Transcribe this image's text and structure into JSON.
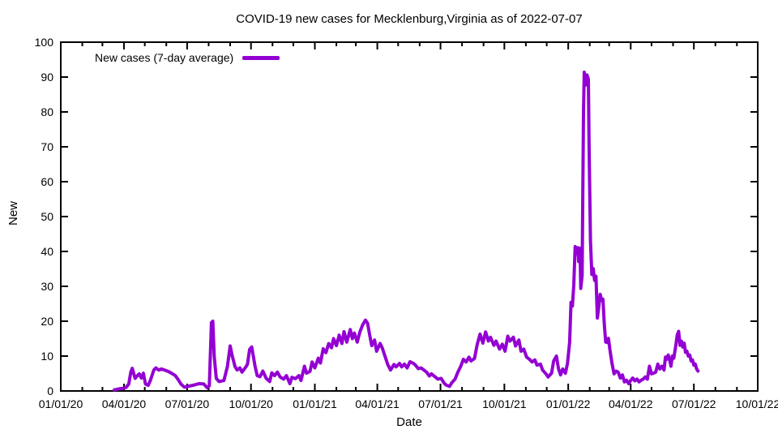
{
  "chart_data": {
    "type": "line",
    "title": "COVID-19 new cases for Mecklenburg,Virginia as of 2022-07-07",
    "xlabel": "Date",
    "ylabel": "New",
    "xlim": [
      "2020-01-01",
      "2022-10-01"
    ],
    "ylim": [
      0,
      100
    ],
    "grid": false,
    "legend_position": "top-left-inside",
    "background_color": "#ffffff",
    "axis_color": "#000000",
    "text_color": "#000000",
    "y_ticks": [
      0,
      10,
      20,
      30,
      40,
      50,
      60,
      70,
      80,
      90,
      100
    ],
    "x_ticks": [
      {
        "label": "01/01/20",
        "date": "2020-01-01"
      },
      {
        "label": "04/01/20",
        "date": "2020-04-01"
      },
      {
        "label": "07/01/20",
        "date": "2020-07-01"
      },
      {
        "label": "10/01/20",
        "date": "2020-10-01"
      },
      {
        "label": "01/01/21",
        "date": "2021-01-01"
      },
      {
        "label": "04/01/21",
        "date": "2021-04-01"
      },
      {
        "label": "07/01/21",
        "date": "2021-07-01"
      },
      {
        "label": "10/01/21",
        "date": "2021-10-01"
      },
      {
        "label": "01/01/22",
        "date": "2022-01-01"
      },
      {
        "label": "04/01/22",
        "date": "2022-04-01"
      },
      {
        "label": "07/01/22",
        "date": "2022-07-01"
      },
      {
        "label": "10/01/22",
        "date": "2022-10-01"
      }
    ],
    "x_minor_tick_unit": "month",
    "series": [
      {
        "name": "New cases (7-day average)",
        "color": "#9400d3",
        "line_width": 4,
        "points": [
          [
            "2020-03-18",
            0.3
          ],
          [
            "2020-03-25",
            0.6
          ],
          [
            "2020-04-01",
            0.8
          ],
          [
            "2020-04-04",
            1.0
          ],
          [
            "2020-04-08",
            2.0
          ],
          [
            "2020-04-11",
            5.5
          ],
          [
            "2020-04-13",
            6.5
          ],
          [
            "2020-04-17",
            3.6
          ],
          [
            "2020-04-20",
            4.3
          ],
          [
            "2020-04-23",
            4.9
          ],
          [
            "2020-04-26",
            3.7
          ],
          [
            "2020-04-29",
            5.1
          ],
          [
            "2020-05-02",
            2.0
          ],
          [
            "2020-05-06",
            1.6
          ],
          [
            "2020-05-09",
            3.0
          ],
          [
            "2020-05-14",
            6.0
          ],
          [
            "2020-05-17",
            6.6
          ],
          [
            "2020-05-21",
            6.0
          ],
          [
            "2020-05-25",
            6.3
          ],
          [
            "2020-05-31",
            5.9
          ],
          [
            "2020-06-05",
            5.5
          ],
          [
            "2020-06-10",
            4.9
          ],
          [
            "2020-06-14",
            4.4
          ],
          [
            "2020-06-19",
            3.0
          ],
          [
            "2020-06-22",
            2.0
          ],
          [
            "2020-06-27",
            1.1
          ],
          [
            "2020-07-04",
            1.4
          ],
          [
            "2020-07-11",
            1.7
          ],
          [
            "2020-07-18",
            2.1
          ],
          [
            "2020-07-25",
            2.0
          ],
          [
            "2020-07-30",
            0.9
          ],
          [
            "2020-08-02",
            1.5
          ],
          [
            "2020-08-05",
            19.6
          ],
          [
            "2020-08-07",
            20.0
          ],
          [
            "2020-08-09",
            10.0
          ],
          [
            "2020-08-12",
            3.6
          ],
          [
            "2020-08-16",
            2.7
          ],
          [
            "2020-08-23",
            3.0
          ],
          [
            "2020-08-28",
            7.0
          ],
          [
            "2020-09-01",
            12.9
          ],
          [
            "2020-09-04",
            10.0
          ],
          [
            "2020-09-08",
            7.0
          ],
          [
            "2020-09-11",
            6.0
          ],
          [
            "2020-09-15",
            6.6
          ],
          [
            "2020-09-18",
            5.4
          ],
          [
            "2020-09-24",
            7.0
          ],
          [
            "2020-09-26",
            7.7
          ],
          [
            "2020-09-29",
            11.9
          ],
          [
            "2020-10-02",
            12.6
          ],
          [
            "2020-10-07",
            7.0
          ],
          [
            "2020-10-10",
            4.4
          ],
          [
            "2020-10-14",
            4.1
          ],
          [
            "2020-10-18",
            5.7
          ],
          [
            "2020-10-23",
            3.6
          ],
          [
            "2020-10-28",
            2.7
          ],
          [
            "2020-10-31",
            5.2
          ],
          [
            "2020-11-04",
            4.4
          ],
          [
            "2020-11-08",
            5.4
          ],
          [
            "2020-11-12",
            4.0
          ],
          [
            "2020-11-17",
            3.4
          ],
          [
            "2020-11-21",
            4.4
          ],
          [
            "2020-11-26",
            2.1
          ],
          [
            "2020-11-29",
            3.9
          ],
          [
            "2020-12-04",
            3.5
          ],
          [
            "2020-12-09",
            4.4
          ],
          [
            "2020-12-12",
            3.0
          ],
          [
            "2020-12-17",
            7.1
          ],
          [
            "2020-12-20",
            5.1
          ],
          [
            "2020-12-25",
            5.6
          ],
          [
            "2020-12-28",
            8.3
          ],
          [
            "2021-01-01",
            6.6
          ],
          [
            "2021-01-06",
            9.4
          ],
          [
            "2021-01-09",
            8.0
          ],
          [
            "2021-01-13",
            12.1
          ],
          [
            "2021-01-17",
            11.0
          ],
          [
            "2021-01-21",
            13.6
          ],
          [
            "2021-01-25",
            12.4
          ],
          [
            "2021-01-28",
            15.0
          ],
          [
            "2021-02-01",
            13.0
          ],
          [
            "2021-02-05",
            16.0
          ],
          [
            "2021-02-09",
            13.6
          ],
          [
            "2021-02-12",
            17.0
          ],
          [
            "2021-02-16",
            14.0
          ],
          [
            "2021-02-21",
            17.6
          ],
          [
            "2021-02-24",
            15.0
          ],
          [
            "2021-02-27",
            16.6
          ],
          [
            "2021-03-03",
            14.0
          ],
          [
            "2021-03-07",
            17.0
          ],
          [
            "2021-03-11",
            19.0
          ],
          [
            "2021-03-15",
            20.3
          ],
          [
            "2021-03-18",
            19.4
          ],
          [
            "2021-03-21",
            16.0
          ],
          [
            "2021-03-24",
            13.0
          ],
          [
            "2021-03-28",
            14.6
          ],
          [
            "2021-03-31",
            11.4
          ],
          [
            "2021-04-05",
            13.6
          ],
          [
            "2021-04-08",
            12.4
          ],
          [
            "2021-04-12",
            10.0
          ],
          [
            "2021-04-16",
            7.6
          ],
          [
            "2021-04-20",
            6.0
          ],
          [
            "2021-04-25",
            7.6
          ],
          [
            "2021-04-28",
            6.9
          ],
          [
            "2021-05-03",
            7.9
          ],
          [
            "2021-05-06",
            6.9
          ],
          [
            "2021-05-10",
            7.7
          ],
          [
            "2021-05-14",
            6.6
          ],
          [
            "2021-05-18",
            8.4
          ],
          [
            "2021-05-23",
            7.9
          ],
          [
            "2021-05-26",
            7.4
          ],
          [
            "2021-05-30",
            6.4
          ],
          [
            "2021-06-03",
            6.6
          ],
          [
            "2021-06-07",
            6.0
          ],
          [
            "2021-06-11",
            5.4
          ],
          [
            "2021-06-15",
            4.3
          ],
          [
            "2021-06-18",
            4.9
          ],
          [
            "2021-06-23",
            4.1
          ],
          [
            "2021-06-27",
            3.4
          ],
          [
            "2021-07-02",
            3.6
          ],
          [
            "2021-07-06",
            2.3
          ],
          [
            "2021-07-09",
            1.7
          ],
          [
            "2021-07-14",
            1.3
          ],
          [
            "2021-07-17",
            2.3
          ],
          [
            "2021-07-22",
            3.4
          ],
          [
            "2021-07-26",
            5.4
          ],
          [
            "2021-07-30",
            7.0
          ],
          [
            "2021-08-03",
            9.1
          ],
          [
            "2021-08-07",
            8.3
          ],
          [
            "2021-08-11",
            9.7
          ],
          [
            "2021-08-14",
            8.6
          ],
          [
            "2021-08-19",
            9.3
          ],
          [
            "2021-08-23",
            13.4
          ],
          [
            "2021-08-27",
            16.3
          ],
          [
            "2021-08-31",
            13.7
          ],
          [
            "2021-09-04",
            16.9
          ],
          [
            "2021-09-08",
            14.3
          ],
          [
            "2021-09-11",
            15.4
          ],
          [
            "2021-09-16",
            13.1
          ],
          [
            "2021-09-19",
            14.3
          ],
          [
            "2021-09-24",
            12.0
          ],
          [
            "2021-09-28",
            13.4
          ],
          [
            "2021-10-02",
            11.4
          ],
          [
            "2021-10-06",
            15.7
          ],
          [
            "2021-10-09",
            14.3
          ],
          [
            "2021-10-14",
            15.4
          ],
          [
            "2021-10-17",
            12.9
          ],
          [
            "2021-10-22",
            14.6
          ],
          [
            "2021-10-25",
            11.4
          ],
          [
            "2021-10-29",
            12.0
          ],
          [
            "2021-11-02",
            9.7
          ],
          [
            "2021-11-06",
            9.1
          ],
          [
            "2021-11-10",
            8.3
          ],
          [
            "2021-11-14",
            8.9
          ],
          [
            "2021-11-17",
            7.4
          ],
          [
            "2021-11-22",
            7.7
          ],
          [
            "2021-11-25",
            6.0
          ],
          [
            "2021-11-30",
            4.9
          ],
          [
            "2021-12-03",
            4.0
          ],
          [
            "2021-12-08",
            5.1
          ],
          [
            "2021-12-11",
            8.6
          ],
          [
            "2021-12-15",
            10.0
          ],
          [
            "2021-12-18",
            6.3
          ],
          [
            "2021-12-21",
            4.6
          ],
          [
            "2021-12-24",
            6.3
          ],
          [
            "2021-12-28",
            5.1
          ],
          [
            "2021-12-31",
            8.0
          ],
          [
            "2022-01-03",
            14.0
          ],
          [
            "2022-01-05",
            25.4
          ],
          [
            "2022-01-07",
            24.3
          ],
          [
            "2022-01-09",
            30.3
          ],
          [
            "2022-01-11",
            41.4
          ],
          [
            "2022-01-13",
            39.4
          ],
          [
            "2022-01-15",
            41.1
          ],
          [
            "2022-01-16",
            37.1
          ],
          [
            "2022-01-18",
            40.9
          ],
          [
            "2022-01-19",
            29.4
          ],
          [
            "2022-01-21",
            33.1
          ],
          [
            "2022-01-23",
            80.0
          ],
          [
            "2022-01-24",
            91.4
          ],
          [
            "2022-01-26",
            87.7
          ],
          [
            "2022-01-28",
            90.6
          ],
          [
            "2022-01-30",
            89.4
          ],
          [
            "2022-01-31",
            70.0
          ],
          [
            "2022-02-02",
            43.0
          ],
          [
            "2022-02-04",
            33.4
          ],
          [
            "2022-02-06",
            35.1
          ],
          [
            "2022-02-08",
            31.7
          ],
          [
            "2022-02-10",
            32.9
          ],
          [
            "2022-02-12",
            20.9
          ],
          [
            "2022-02-14",
            24.0
          ],
          [
            "2022-02-16",
            27.7
          ],
          [
            "2022-02-18",
            26.0
          ],
          [
            "2022-02-20",
            26.3
          ],
          [
            "2022-02-22",
            19.0
          ],
          [
            "2022-02-24",
            14.0
          ],
          [
            "2022-02-26",
            13.9
          ],
          [
            "2022-02-28",
            15.1
          ],
          [
            "2022-03-02",
            12.0
          ],
          [
            "2022-03-05",
            8.0
          ],
          [
            "2022-03-08",
            4.9
          ],
          [
            "2022-03-11",
            5.7
          ],
          [
            "2022-03-14",
            5.4
          ],
          [
            "2022-03-17",
            3.7
          ],
          [
            "2022-03-20",
            4.6
          ],
          [
            "2022-03-23",
            2.6
          ],
          [
            "2022-03-26",
            3.1
          ],
          [
            "2022-03-29",
            2.1
          ],
          [
            "2022-04-01",
            3.0
          ],
          [
            "2022-04-04",
            3.7
          ],
          [
            "2022-04-07",
            2.9
          ],
          [
            "2022-04-10",
            3.4
          ],
          [
            "2022-04-13",
            2.6
          ],
          [
            "2022-04-16",
            3.1
          ],
          [
            "2022-04-19",
            3.4
          ],
          [
            "2022-04-22",
            4.0
          ],
          [
            "2022-04-25",
            3.4
          ],
          [
            "2022-04-28",
            7.1
          ],
          [
            "2022-05-01",
            4.9
          ],
          [
            "2022-05-04",
            5.1
          ],
          [
            "2022-05-07",
            5.4
          ],
          [
            "2022-05-10",
            7.7
          ],
          [
            "2022-05-13",
            6.3
          ],
          [
            "2022-05-16",
            7.1
          ],
          [
            "2022-05-19",
            6.0
          ],
          [
            "2022-05-21",
            9.7
          ],
          [
            "2022-05-23",
            9.1
          ],
          [
            "2022-05-25",
            10.3
          ],
          [
            "2022-05-27",
            9.1
          ],
          [
            "2022-05-29",
            7.1
          ],
          [
            "2022-05-31",
            10.0
          ],
          [
            "2022-06-02",
            9.4
          ],
          [
            "2022-06-05",
            13.0
          ],
          [
            "2022-06-07",
            16.0
          ],
          [
            "2022-06-09",
            17.1
          ],
          [
            "2022-06-11",
            13.1
          ],
          [
            "2022-06-13",
            14.3
          ],
          [
            "2022-06-15",
            12.6
          ],
          [
            "2022-06-17",
            13.7
          ],
          [
            "2022-06-19",
            11.1
          ],
          [
            "2022-06-21",
            11.4
          ],
          [
            "2022-06-23",
            10.0
          ],
          [
            "2022-06-25",
            10.3
          ],
          [
            "2022-06-27",
            8.6
          ],
          [
            "2022-06-29",
            8.9
          ],
          [
            "2022-07-01",
            7.4
          ],
          [
            "2022-07-03",
            7.7
          ],
          [
            "2022-07-05",
            6.3
          ],
          [
            "2022-07-07",
            5.7
          ]
        ]
      }
    ]
  }
}
